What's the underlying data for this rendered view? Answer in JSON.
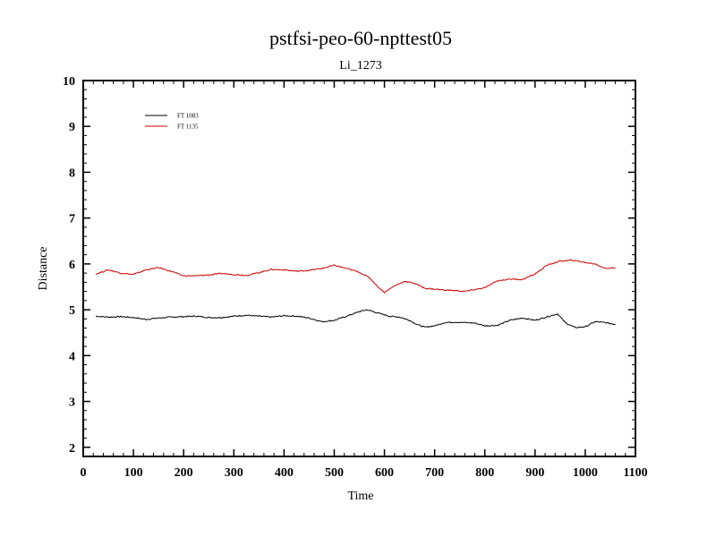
{
  "chart_data": {
    "type": "line",
    "title": "pstfsi-peo-60-npttest05",
    "subtitle": "Li_1273",
    "xlabel": "Time",
    "ylabel": "Distance",
    "xlim": [
      0,
      1100
    ],
    "ylim": [
      1.8,
      10
    ],
    "x_ticks": [
      0,
      100,
      200,
      300,
      400,
      500,
      600,
      700,
      800,
      900,
      1000,
      1100
    ],
    "y_ticks": [
      2,
      3,
      4,
      5,
      6,
      7,
      8,
      9,
      10
    ],
    "grid": false,
    "legend": "top-left",
    "series": [
      {
        "name": "FT 1083",
        "color": "#000000",
        "x": [
          25,
          50,
          75,
          100,
          125,
          150,
          175,
          200,
          225,
          250,
          275,
          300,
          325,
          350,
          375,
          400,
          425,
          450,
          475,
          500,
          525,
          550,
          565,
          590,
          610,
          630,
          650,
          665,
          680,
          700,
          720,
          740,
          760,
          780,
          800,
          825,
          850,
          875,
          900,
          925,
          945,
          960,
          980,
          1000,
          1020,
          1040,
          1060
        ],
        "y": [
          4.86,
          4.84,
          4.85,
          4.83,
          4.79,
          4.82,
          4.84,
          4.85,
          4.86,
          4.83,
          4.83,
          4.86,
          4.88,
          4.86,
          4.84,
          4.87,
          4.86,
          4.82,
          4.74,
          4.77,
          4.86,
          4.96,
          5.0,
          4.92,
          4.86,
          4.84,
          4.77,
          4.68,
          4.62,
          4.65,
          4.72,
          4.73,
          4.72,
          4.71,
          4.65,
          4.66,
          4.77,
          4.82,
          4.77,
          4.85,
          4.91,
          4.72,
          4.61,
          4.63,
          4.74,
          4.72,
          4.68
        ]
      },
      {
        "name": "FT 1135",
        "color": "#cc0000",
        "x": [
          25,
          50,
          75,
          100,
          125,
          150,
          175,
          200,
          225,
          250,
          275,
          300,
          325,
          350,
          375,
          400,
          425,
          450,
          475,
          500,
          525,
          550,
          570,
          590,
          600,
          610,
          620,
          640,
          660,
          680,
          700,
          720,
          740,
          760,
          780,
          800,
          825,
          850,
          875,
          900,
          925,
          950,
          975,
          1000,
          1020,
          1040,
          1060
        ],
        "y": [
          5.78,
          5.87,
          5.8,
          5.77,
          5.87,
          5.92,
          5.84,
          5.74,
          5.74,
          5.76,
          5.79,
          5.77,
          5.75,
          5.81,
          5.88,
          5.87,
          5.84,
          5.86,
          5.9,
          5.97,
          5.9,
          5.82,
          5.7,
          5.47,
          5.38,
          5.45,
          5.52,
          5.62,
          5.58,
          5.47,
          5.45,
          5.43,
          5.42,
          5.4,
          5.44,
          5.48,
          5.63,
          5.67,
          5.66,
          5.78,
          5.98,
          6.06,
          6.08,
          6.03,
          6.0,
          5.9,
          5.92
        ]
      }
    ]
  }
}
